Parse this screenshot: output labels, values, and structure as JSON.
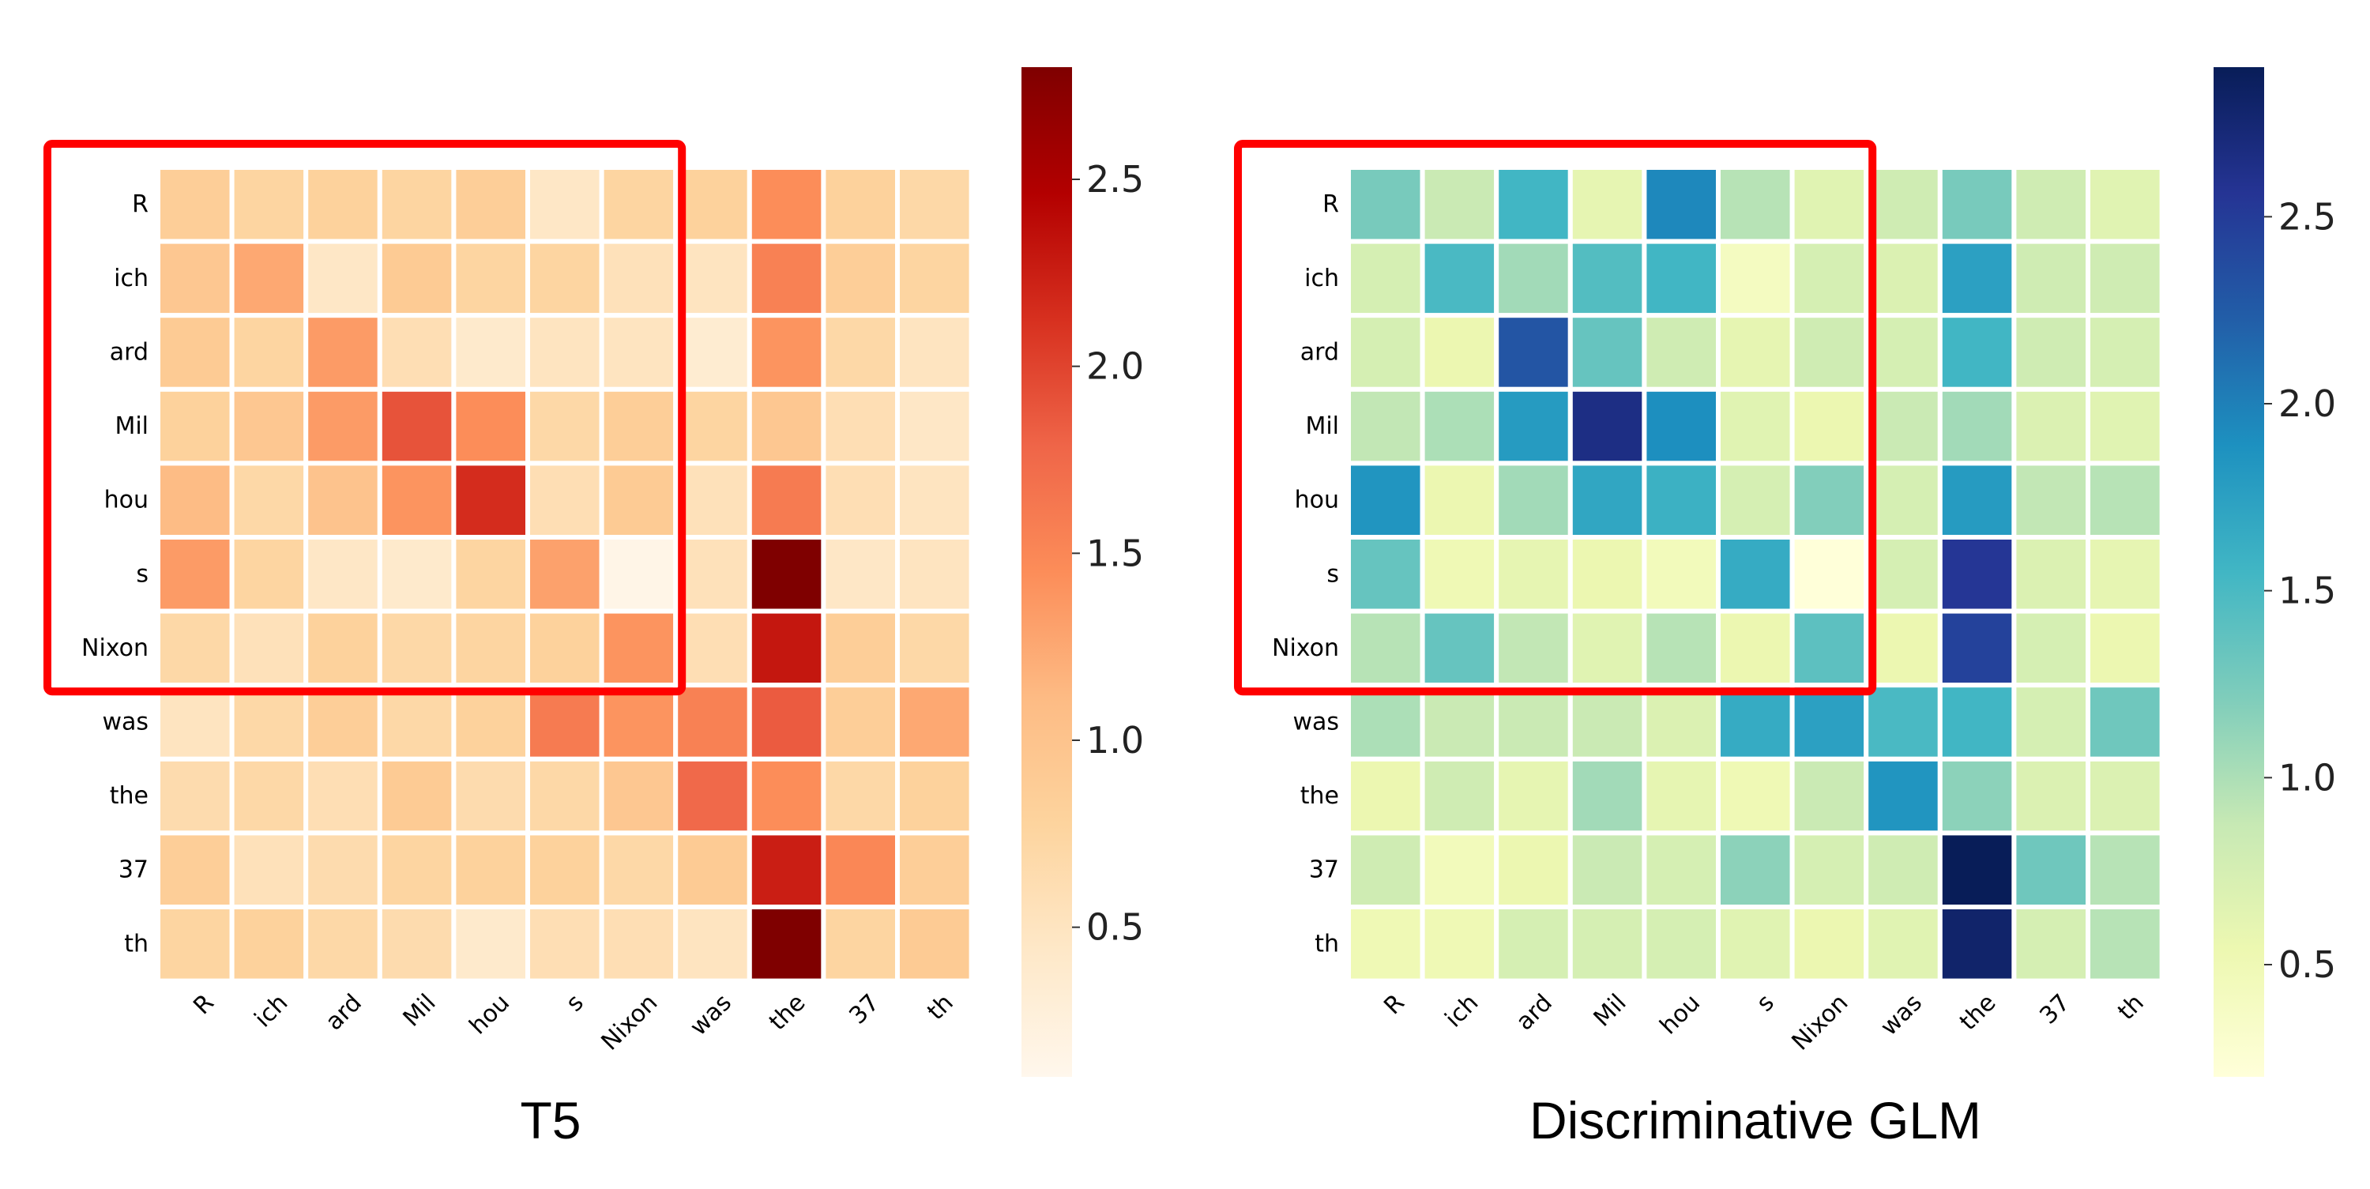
{
  "chart_data": [
    {
      "type": "heatmap",
      "title": "T5",
      "colormap": "OrRd",
      "colormap_stops": [
        "#fff7ec",
        "#fee8c8",
        "#fdd49e",
        "#fdbb84",
        "#fc8d59",
        "#ef6548",
        "#d7301f",
        "#b30000",
        "#7f0000"
      ],
      "vmin": 0.1,
      "vmax": 2.8,
      "colorbar_ticks": [
        "0.5",
        "1.0",
        "1.5",
        "2.0",
        "2.5"
      ],
      "rows": [
        "R",
        "ich",
        "ard",
        "Mil",
        "hou",
        "s",
        "Nixon",
        "was",
        "the",
        "37",
        "th"
      ],
      "cols": [
        "R",
        "ich",
        "ard",
        "Mil",
        "hou",
        "s",
        "Nixon",
        "was",
        "the",
        "37",
        "th"
      ],
      "values": [
        [
          0.85,
          0.75,
          0.8,
          0.75,
          0.85,
          0.45,
          0.75,
          0.8,
          1.45,
          0.8,
          0.7
        ],
        [
          0.95,
          1.25,
          0.45,
          0.9,
          0.75,
          0.75,
          0.55,
          0.5,
          1.55,
          0.85,
          0.75
        ],
        [
          0.9,
          0.75,
          1.35,
          0.6,
          0.4,
          0.5,
          0.5,
          0.35,
          1.4,
          0.7,
          0.5
        ],
        [
          0.8,
          0.95,
          1.35,
          1.9,
          1.45,
          0.7,
          0.85,
          0.75,
          0.95,
          0.6,
          0.45
        ],
        [
          1.1,
          0.7,
          1.0,
          1.4,
          2.15,
          0.6,
          0.9,
          0.55,
          1.6,
          0.6,
          0.5
        ],
        [
          1.35,
          0.75,
          0.45,
          0.4,
          0.75,
          1.3,
          0.15,
          0.55,
          2.8,
          0.45,
          0.5
        ],
        [
          0.7,
          0.55,
          0.8,
          0.7,
          0.75,
          0.8,
          1.4,
          0.6,
          2.3,
          0.85,
          0.7
        ],
        [
          0.5,
          0.7,
          0.85,
          0.7,
          0.8,
          1.6,
          1.4,
          1.55,
          1.85,
          0.85,
          1.25
        ],
        [
          0.65,
          0.7,
          0.6,
          0.9,
          0.65,
          0.7,
          0.95,
          1.75,
          1.45,
          0.7,
          0.8
        ],
        [
          0.85,
          0.55,
          0.65,
          0.75,
          0.8,
          0.8,
          0.7,
          0.9,
          2.25,
          1.5,
          0.85
        ],
        [
          0.75,
          0.8,
          0.7,
          0.65,
          0.4,
          0.6,
          0.6,
          0.5,
          2.8,
          0.75,
          0.9
        ]
      ],
      "highlight": {
        "row_start": 0,
        "row_end": 6,
        "col_start": 0,
        "col_end": 6,
        "color": "#ff0000"
      }
    },
    {
      "type": "heatmap",
      "title": "Discriminative GLM",
      "colormap": "YlGnBu",
      "colormap_stops": [
        "#ffffd9",
        "#edf8b1",
        "#c7e9b4",
        "#7fcdbb",
        "#41b6c4",
        "#1d91c0",
        "#225ea8",
        "#253494",
        "#081d58"
      ],
      "vmin": 0.2,
      "vmax": 2.9,
      "colorbar_ticks": [
        "0.5",
        "1.0",
        "1.5",
        "2.0",
        "2.5"
      ],
      "rows": [
        "R",
        "ich",
        "ard",
        "Mil",
        "hou",
        "s",
        "Nixon",
        "was",
        "the",
        "37",
        "th"
      ],
      "cols": [
        "R",
        "ich",
        "ard",
        "Mil",
        "hou",
        "s",
        "Nixon",
        "was",
        "the",
        "37",
        "th"
      ],
      "values": [
        [
          1.25,
          0.85,
          1.55,
          0.6,
          1.95,
          0.95,
          0.65,
          0.8,
          1.25,
          0.8,
          0.65
        ],
        [
          0.75,
          1.5,
          1.05,
          1.45,
          1.55,
          0.4,
          0.75,
          0.7,
          1.75,
          0.8,
          0.8
        ],
        [
          0.75,
          0.55,
          2.3,
          1.35,
          0.8,
          0.6,
          0.8,
          0.75,
          1.55,
          0.8,
          0.75
        ],
        [
          0.9,
          1.0,
          1.8,
          2.65,
          1.9,
          0.65,
          0.55,
          0.85,
          1.05,
          0.7,
          0.65
        ],
        [
          1.85,
          0.55,
          1.05,
          1.7,
          1.6,
          0.75,
          1.2,
          0.75,
          1.8,
          0.9,
          0.95
        ],
        [
          1.35,
          0.5,
          0.6,
          0.55,
          0.45,
          1.65,
          0.2,
          0.75,
          2.55,
          0.7,
          0.6
        ],
        [
          0.95,
          1.35,
          0.9,
          0.65,
          0.95,
          0.55,
          1.4,
          0.55,
          2.45,
          0.75,
          0.55
        ],
        [
          1.0,
          0.85,
          0.85,
          0.85,
          0.7,
          1.65,
          1.75,
          1.5,
          1.55,
          0.75,
          1.3
        ],
        [
          0.55,
          0.8,
          0.6,
          1.05,
          0.6,
          0.5,
          0.85,
          1.85,
          1.15,
          0.7,
          0.7
        ],
        [
          0.8,
          0.45,
          0.55,
          0.85,
          0.75,
          1.15,
          0.75,
          0.8,
          2.9,
          1.3,
          0.95
        ],
        [
          0.5,
          0.5,
          0.75,
          0.75,
          0.75,
          0.65,
          0.55,
          0.65,
          2.8,
          0.75,
          0.95
        ]
      ],
      "highlight": {
        "row_start": 0,
        "row_end": 6,
        "col_start": 0,
        "col_end": 6,
        "color": "#ff0000"
      }
    }
  ]
}
